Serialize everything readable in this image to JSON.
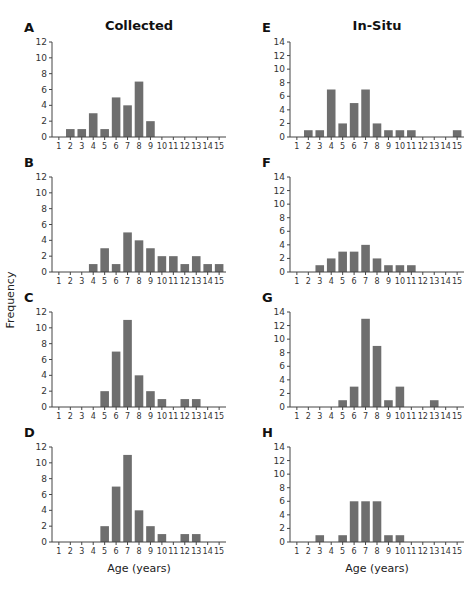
{
  "chart_data": [
    {
      "type": "bar",
      "title": "Collected",
      "ylabel": "Frequency",
      "annotations": [
        "A"
      ],
      "color": "#6e6e6e",
      "x": [
        1,
        2,
        3,
        4,
        5,
        6,
        7,
        8,
        9,
        10,
        11,
        12,
        13,
        14,
        15
      ],
      "values": [
        0,
        1,
        1,
        3,
        1,
        5,
        4,
        7,
        2,
        0,
        0,
        0,
        0,
        0,
        0
      ],
      "xlim": [
        0.4,
        15.6
      ],
      "xticks": [
        1,
        2,
        3,
        4,
        5,
        6,
        7,
        8,
        9,
        10,
        11,
        12,
        13,
        14,
        15
      ],
      "ylim": [
        0,
        12
      ],
      "yticks": [
        0,
        2,
        4,
        6,
        8,
        10,
        12
      ]
    },
    {
      "type": "bar",
      "annotations": [
        "B"
      ],
      "color": "#6e6e6e",
      "x": [
        1,
        2,
        3,
        4,
        5,
        6,
        7,
        8,
        9,
        10,
        11,
        12,
        13,
        14,
        15
      ],
      "values": [
        0,
        0,
        0,
        1,
        3,
        1,
        5,
        4,
        3,
        2,
        2,
        1,
        2,
        1,
        1
      ],
      "xlim": [
        0.4,
        15.6
      ],
      "xticks": [
        1,
        2,
        3,
        4,
        5,
        6,
        7,
        8,
        9,
        10,
        11,
        12,
        13,
        14,
        15
      ],
      "ylim": [
        0,
        12
      ],
      "yticks": [
        0,
        2,
        4,
        6,
        8,
        10,
        12
      ]
    },
    {
      "type": "bar",
      "annotations": [
        "C"
      ],
      "color": "#6e6e6e",
      "x": [
        1,
        2,
        3,
        4,
        5,
        6,
        7,
        8,
        9,
        10,
        11,
        12,
        13,
        14,
        15
      ],
      "values": [
        0,
        0,
        0,
        0,
        2,
        7,
        11,
        4,
        2,
        1,
        0,
        1,
        1,
        0,
        0
      ],
      "xlim": [
        0.4,
        15.6
      ],
      "xticks": [
        1,
        2,
        3,
        4,
        5,
        6,
        7,
        8,
        9,
        10,
        11,
        12,
        13,
        14,
        15
      ],
      "ylim": [
        0,
        12
      ],
      "yticks": [
        0,
        2,
        4,
        6,
        8,
        10,
        12
      ]
    },
    {
      "type": "bar",
      "xlabel": "Age (years)",
      "annotations": [
        "D"
      ],
      "color": "#6e6e6e",
      "x": [
        1,
        2,
        3,
        4,
        5,
        6,
        7,
        8,
        9,
        10,
        11,
        12,
        13,
        14,
        15
      ],
      "values": [
        0,
        0,
        0,
        0,
        2,
        7,
        11,
        4,
        2,
        1,
        0,
        1,
        1,
        0,
        0
      ],
      "xlim": [
        0.4,
        15.6
      ],
      "xticks": [
        1,
        2,
        3,
        4,
        5,
        6,
        7,
        8,
        9,
        10,
        11,
        12,
        13,
        14,
        15
      ],
      "ylim": [
        0,
        12
      ],
      "yticks": [
        0,
        2,
        4,
        6,
        8,
        10,
        12
      ]
    },
    {
      "type": "bar",
      "title": "In-Situ",
      "annotations": [
        "E"
      ],
      "color": "#6e6e6e",
      "x": [
        1,
        2,
        3,
        4,
        5,
        6,
        7,
        8,
        9,
        10,
        11,
        12,
        13,
        14,
        15
      ],
      "values": [
        0,
        1,
        1,
        7,
        2,
        5,
        7,
        2,
        1,
        1,
        1,
        0,
        0,
        0,
        1
      ],
      "xlim": [
        0.4,
        15.6
      ],
      "xticks": [
        1,
        2,
        3,
        4,
        5,
        6,
        7,
        8,
        9,
        10,
        11,
        12,
        13,
        14,
        15
      ],
      "ylim": [
        0,
        14
      ],
      "yticks": [
        0,
        2,
        4,
        6,
        8,
        10,
        12,
        14
      ]
    },
    {
      "type": "bar",
      "annotations": [
        "F"
      ],
      "color": "#6e6e6e",
      "x": [
        1,
        2,
        3,
        4,
        5,
        6,
        7,
        8,
        9,
        10,
        11,
        12,
        13,
        14,
        15
      ],
      "values": [
        0,
        0,
        1,
        2,
        3,
        3,
        4,
        2,
        1,
        1,
        1,
        0,
        0,
        0,
        0
      ],
      "xlim": [
        0.4,
        15.6
      ],
      "xticks": [
        1,
        2,
        3,
        4,
        5,
        6,
        7,
        8,
        9,
        10,
        11,
        12,
        13,
        14,
        15
      ],
      "ylim": [
        0,
        14
      ],
      "yticks": [
        0,
        2,
        4,
        6,
        8,
        10,
        12,
        14
      ]
    },
    {
      "type": "bar",
      "annotations": [
        "G"
      ],
      "color": "#6e6e6e",
      "x": [
        1,
        2,
        3,
        4,
        5,
        6,
        7,
        8,
        9,
        10,
        11,
        12,
        13,
        14,
        15
      ],
      "values": [
        0,
        0,
        0,
        0,
        1,
        3,
        13,
        9,
        1,
        3,
        0,
        0,
        1,
        0,
        0
      ],
      "xlim": [
        0.4,
        15.6
      ],
      "xticks": [
        1,
        2,
        3,
        4,
        5,
        6,
        7,
        8,
        9,
        10,
        11,
        12,
        13,
        14,
        15
      ],
      "ylim": [
        0,
        14
      ],
      "yticks": [
        0,
        2,
        4,
        6,
        8,
        10,
        12,
        14
      ]
    },
    {
      "type": "bar",
      "xlabel": "Age (years)",
      "annotations": [
        "H"
      ],
      "color": "#6e6e6e",
      "x": [
        1,
        2,
        3,
        4,
        5,
        6,
        7,
        8,
        9,
        10,
        11,
        12,
        13,
        14,
        15
      ],
      "values": [
        0,
        0,
        1,
        0,
        1,
        6,
        6,
        6,
        1,
        1,
        0,
        0,
        0,
        0,
        0
      ],
      "xlim": [
        0.4,
        15.6
      ],
      "xticks": [
        1,
        2,
        3,
        4,
        5,
        6,
        7,
        8,
        9,
        10,
        11,
        12,
        13,
        14,
        15
      ],
      "ylim": [
        0,
        14
      ],
      "yticks": [
        0,
        2,
        4,
        6,
        8,
        10,
        12,
        14
      ]
    }
  ]
}
